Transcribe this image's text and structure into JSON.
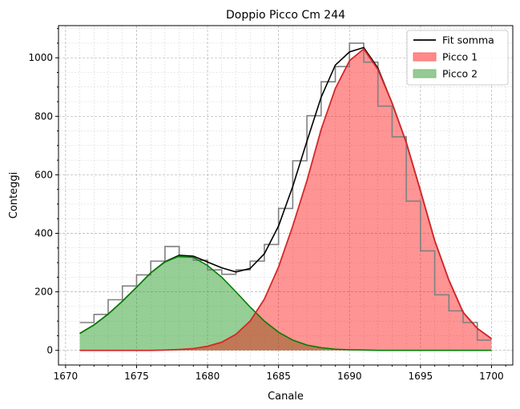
{
  "chart_data": {
    "type": "line",
    "title": "Doppio Picco Cm 244",
    "xlabel": "Canale",
    "ylabel": "Conteggi",
    "xlim": [
      1669.5,
      1701.5
    ],
    "ylim": [
      -50,
      1110
    ],
    "xticks": [
      1670,
      1675,
      1680,
      1685,
      1690,
      1695,
      1700
    ],
    "yticks": [
      0,
      200,
      400,
      600,
      800,
      1000
    ],
    "grid": true,
    "grid_minor": true,
    "legend_position": "top-right",
    "colors": {
      "sum": "#000000",
      "peak1_line": "#d62728",
      "peak1_fill": "#ff0000",
      "peak2_line": "#007f00",
      "peak2_fill": "#2ca02c",
      "histogram": "#808080"
    },
    "legend": [
      {
        "label": "Fit somma",
        "kind": "line",
        "color": "#000000"
      },
      {
        "label": "Picco 1",
        "kind": "patch",
        "color": "#ff8a8a",
        "edge": "#ff6e6e"
      },
      {
        "label": "Picco 2",
        "kind": "patch",
        "color": "#96c996",
        "edge": "#7fbf7f"
      }
    ],
    "histogram": {
      "bin_edges": [
        1671,
        1672,
        1673,
        1674,
        1675,
        1676,
        1677,
        1678,
        1679,
        1680,
        1681,
        1682,
        1683,
        1684,
        1685,
        1686,
        1687,
        1688,
        1689,
        1690,
        1691,
        1692,
        1693,
        1694,
        1695,
        1696,
        1697,
        1698,
        1699,
        1700
      ],
      "counts": [
        95,
        123,
        173,
        220,
        258,
        305,
        355,
        318,
        308,
        275,
        260,
        275,
        305,
        362,
        485,
        648,
        802,
        918,
        970,
        1050,
        985,
        835,
        730,
        510,
        340,
        190,
        135,
        95,
        35
      ]
    },
    "series": [
      {
        "name": "Fit somma",
        "x": [
          1671,
          1672,
          1673,
          1674,
          1675,
          1676,
          1677,
          1678,
          1679,
          1680,
          1681,
          1682,
          1683,
          1684,
          1685,
          1686,
          1687,
          1688,
          1689,
          1690,
          1691,
          1692,
          1693,
          1694,
          1695,
          1696,
          1697,
          1698,
          1699,
          1700
        ],
        "y": [
          58,
          87,
          124,
          168,
          216,
          265,
          303,
          325,
          322,
          302,
          282,
          268,
          280,
          330,
          425,
          560,
          715,
          865,
          975,
          1020,
          1035,
          965,
          845,
          710,
          545,
          375,
          240,
          130,
          75,
          40
        ]
      },
      {
        "name": "Picco 1",
        "x": [
          1671,
          1672,
          1673,
          1674,
          1675,
          1676,
          1677,
          1678,
          1679,
          1680,
          1681,
          1682,
          1683,
          1684,
          1685,
          1686,
          1687,
          1688,
          1689,
          1690,
          1691,
          1692,
          1693,
          1694,
          1695,
          1696,
          1697,
          1698,
          1699,
          1700
        ],
        "y": [
          0,
          0,
          0,
          0,
          0,
          0,
          1,
          3,
          6,
          14,
          28,
          55,
          100,
          175,
          285,
          425,
          580,
          755,
          895,
          990,
          1030,
          960,
          845,
          710,
          545,
          375,
          240,
          130,
          75,
          40
        ]
      },
      {
        "name": "Picco 2",
        "x": [
          1671,
          1672,
          1673,
          1674,
          1675,
          1676,
          1677,
          1678,
          1679,
          1680,
          1681,
          1682,
          1683,
          1684,
          1685,
          1686,
          1687,
          1688,
          1689,
          1690,
          1691,
          1692,
          1693,
          1694,
          1695,
          1696,
          1697,
          1698,
          1699,
          1700
        ],
        "y": [
          58,
          87,
          124,
          168,
          216,
          265,
          302,
          322,
          318,
          290,
          250,
          200,
          148,
          100,
          62,
          35,
          18,
          9,
          4,
          2,
          1,
          0,
          0,
          0,
          0,
          0,
          0,
          0,
          0,
          0
        ]
      }
    ]
  }
}
